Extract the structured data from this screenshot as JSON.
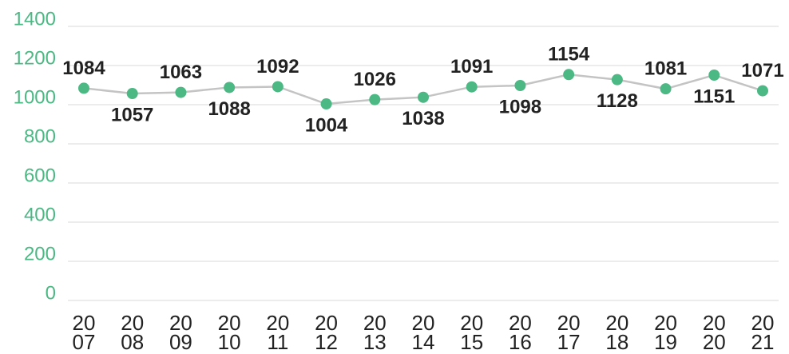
{
  "chart_data": {
    "type": "line",
    "categories": [
      "2007",
      "2008",
      "2009",
      "2010",
      "2011",
      "2012",
      "2013",
      "2014",
      "2015",
      "2016",
      "2017",
      "2018",
      "2019",
      "2020",
      "2021"
    ],
    "series": [
      {
        "color": "#4cb884",
        "line_color": "#c4c4c4",
        "values": [
          1084,
          1057,
          1063,
          1088,
          1092,
          1004,
          1026,
          1038,
          1091,
          1098,
          1154,
          1128,
          1081,
          1151,
          1071
        ]
      }
    ],
    "ylim": [
      0,
      1400
    ],
    "yticks": [
      0,
      200,
      400,
      600,
      800,
      1000,
      1200,
      1400
    ],
    "grid": true
  }
}
